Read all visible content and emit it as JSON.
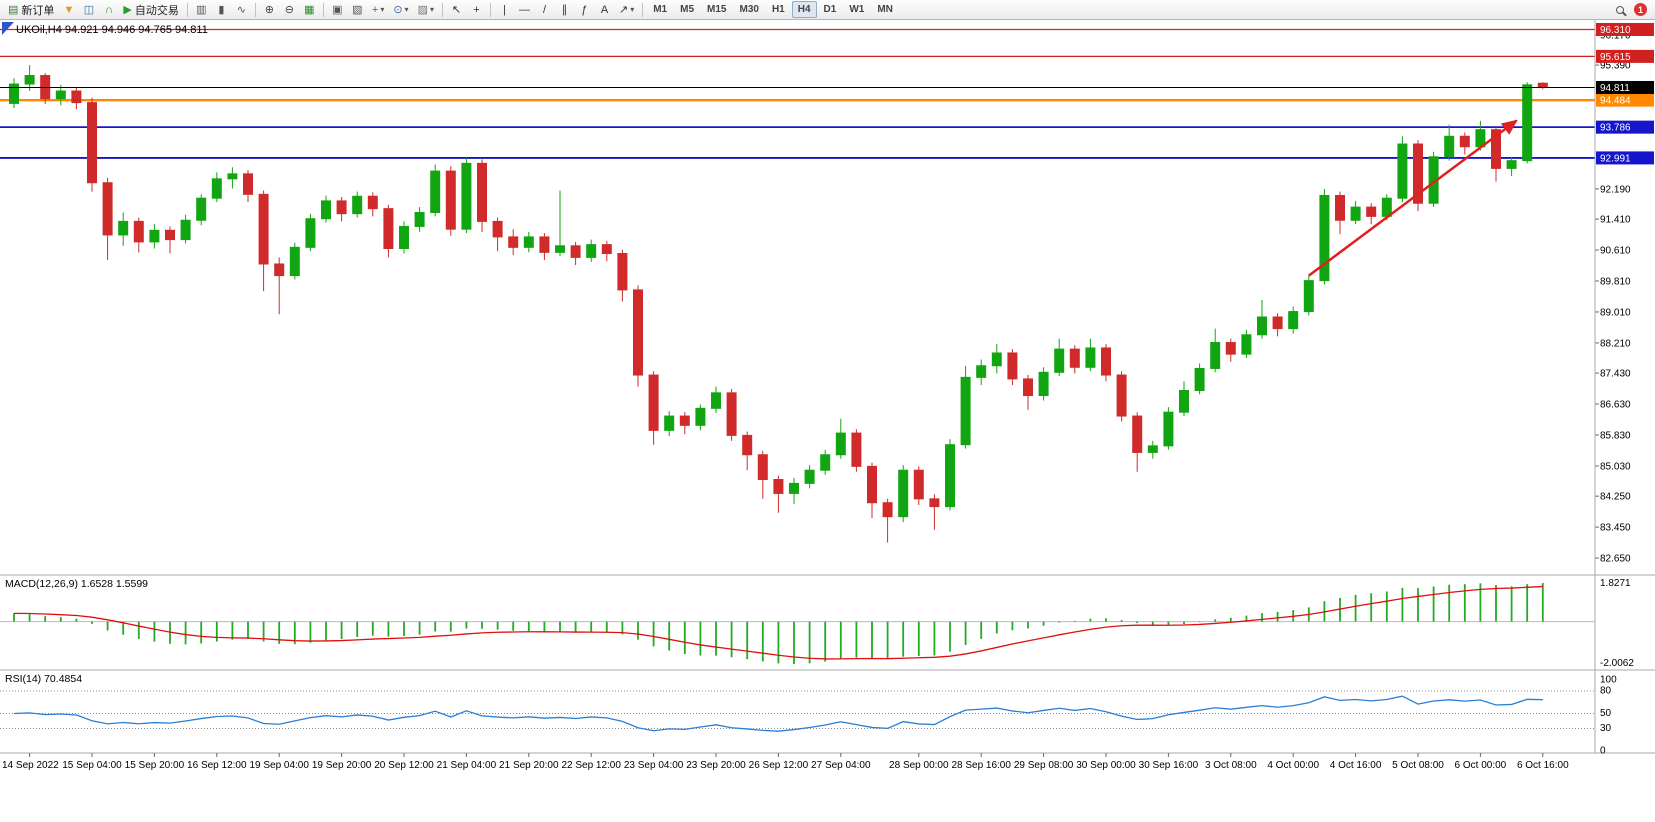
{
  "toolbar": {
    "new_order_label": "新订单",
    "autotrade_label": "自动交易",
    "timeframes": [
      "M1",
      "M5",
      "M15",
      "M30",
      "H1",
      "H4",
      "D1",
      "W1",
      "MN"
    ],
    "active_timeframe": "H4",
    "notification_count": "1",
    "items": [
      {
        "type": "btn",
        "name": "new-order-button",
        "glyph": "▤",
        "glyph_color": "#3a7a3a",
        "label": "新订单"
      },
      {
        "type": "btn",
        "name": "funnel-icon",
        "glyph": "▼",
        "glyph_color": "#d49a2a"
      },
      {
        "type": "btn",
        "name": "chart-window-icon",
        "glyph": "◫",
        "glyph_color": "#3a6ea5"
      },
      {
        "type": "btn",
        "name": "headset-icon",
        "glyph": "∩",
        "glyph_color": "#2a8a2a"
      },
      {
        "type": "btn",
        "name": "autotrade-button",
        "glyph": "▶",
        "glyph_color": "#2a9a2a",
        "label": "自动交易"
      },
      {
        "type": "sep"
      },
      {
        "type": "btn",
        "name": "bar-chart-icon",
        "glyph": "▥",
        "glyph_color": "#555555"
      },
      {
        "type": "btn",
        "name": "candlestick-icon",
        "glyph": "▮",
        "glyph_color": "#555555"
      },
      {
        "type": "btn",
        "name": "line-chart-icon",
        "glyph": "∿",
        "glyph_color": "#555555"
      },
      {
        "type": "sep"
      },
      {
        "type": "btn",
        "name": "zoom-in-icon",
        "glyph": "⊕",
        "glyph_color": "#444444"
      },
      {
        "type": "btn",
        "name": "zoom-out-icon",
        "glyph": "⊖",
        "glyph_color": "#444444"
      },
      {
        "type": "btn",
        "name": "grid-icon",
        "glyph": "▦",
        "glyph_color": "#2a8a2a"
      },
      {
        "type": "sep"
      },
      {
        "type": "btn",
        "name": "tile-windows-icon",
        "glyph": "▣",
        "glyph_color": "#555555"
      },
      {
        "type": "btn",
        "name": "cascade-windows-icon",
        "glyph": "▧",
        "glyph_color": "#555555"
      },
      {
        "type": "btn",
        "name": "indicators-dropdown",
        "glyph": "+",
        "glyph_color": "#2a8a2a",
        "caret": true
      },
      {
        "type": "btn",
        "name": "periods-dropdown",
        "glyph": "⊙",
        "glyph_color": "#3a6ea5",
        "caret": true
      },
      {
        "type": "btn",
        "name": "templates-dropdown",
        "glyph": "▨",
        "glyph_color": "#777777",
        "caret": true
      },
      {
        "type": "sep"
      },
      {
        "type": "btn",
        "name": "cursor-icon",
        "glyph": "↖",
        "glyph_color": "#333333"
      },
      {
        "type": "btn",
        "name": "crosshair-icon",
        "glyph": "+",
        "glyph_color": "#333333"
      },
      {
        "type": "sep"
      },
      {
        "type": "btn",
        "name": "vertical-line-icon",
        "glyph": "|",
        "glyph_color": "#333333"
      },
      {
        "type": "btn",
        "name": "horizontal-line-icon",
        "glyph": "—",
        "glyph_color": "#333333"
      },
      {
        "type": "btn",
        "name": "trendline-icon",
        "glyph": "/",
        "glyph_color": "#333333"
      },
      {
        "type": "btn",
        "name": "channel-icon",
        "glyph": "∥",
        "glyph_color": "#333333"
      },
      {
        "type": "btn",
        "name": "fibonacci-icon",
        "glyph": "ƒ",
        "glyph_color": "#333333"
      },
      {
        "type": "btn",
        "name": "text-icon",
        "glyph": "A",
        "glyph_color": "#333333"
      },
      {
        "type": "btn",
        "name": "arrows-icon",
        "glyph": "↗",
        "glyph_color": "#333333",
        "caret": true
      },
      {
        "type": "sep"
      },
      {
        "type": "tf-group"
      },
      {
        "type": "spacer"
      },
      {
        "type": "mag",
        "name": "search-icon"
      },
      {
        "type": "badge",
        "name": "notification-badge"
      }
    ]
  },
  "chart": {
    "title": "UKOil,H4 94.921 94.946 94.765 94.811",
    "symbol": "UKOil",
    "period": "H4",
    "ohlc_display": {
      "open": "94.921",
      "high": "94.946",
      "low": "94.765",
      "close": "94.811"
    },
    "colors": {
      "background": "#ffffff",
      "bull": "#12a512",
      "bear": "#d02a2a",
      "axis_text": "#000000",
      "panel_border": "#a8a8a8"
    },
    "y_range": [
      82.6,
      96.4
    ],
    "y_axis_labels": [
      96.17,
      95.39,
      92.19,
      91.41,
      90.61,
      89.81,
      89.01,
      88.21,
      87.43,
      86.63,
      85.83,
      85.03,
      84.25,
      83.45,
      82.65
    ],
    "levels": [
      {
        "price": 96.31,
        "label": "96.310",
        "color": "#d02020",
        "w": 1.2
      },
      {
        "price": 95.615,
        "label": "95.615",
        "color": "#d02020",
        "w": 1.2
      },
      {
        "price": 94.484,
        "label": "94.484",
        "color": "#ff8800",
        "w": 2.4
      },
      {
        "price": 93.786,
        "label": "93.786",
        "color": "#1515cc",
        "w": 1.8
      },
      {
        "price": 92.991,
        "label": "92.991",
        "color": "#1515cc",
        "w": 1.8
      }
    ],
    "current_price": {
      "value": 94.811,
      "label": "94.811",
      "color": "#000000"
    },
    "trend_arrow": {
      "from_bar": 83,
      "from_price": 89.95,
      "to_bar": 96.3,
      "to_price": 93.95,
      "color": "#e02020"
    }
  },
  "chart_data": {
    "type": "candlestick",
    "symbol": "UKOil",
    "timeframe": "H4",
    "title": "UKOil,H4 94.921 94.946 94.765 94.811",
    "ylim": [
      82.6,
      96.4
    ],
    "x_labels": [
      {
        "bar": 1,
        "label": "14 Sep 2022"
      },
      {
        "bar": 5,
        "label": "15 Sep 04:00"
      },
      {
        "bar": 9,
        "label": "15 Sep 20:00"
      },
      {
        "bar": 13,
        "label": "16 Sep 12:00"
      },
      {
        "bar": 17,
        "label": "19 Sep 04:00"
      },
      {
        "bar": 21,
        "label": "19 Sep 20:00"
      },
      {
        "bar": 25,
        "label": "20 Sep 12:00"
      },
      {
        "bar": 29,
        "label": "21 Sep 04:00"
      },
      {
        "bar": 33,
        "label": "21 Sep 20:00"
      },
      {
        "bar": 37,
        "label": "22 Sep 12:00"
      },
      {
        "bar": 41,
        "label": "23 Sep 04:00"
      },
      {
        "bar": 45,
        "label": "23 Sep 20:00"
      },
      {
        "bar": 49,
        "label": "26 Sep 12:00"
      },
      {
        "bar": 53,
        "label": "27 Sep 04:00"
      },
      {
        "bar": 58,
        "label": "28 Sep 00:00"
      },
      {
        "bar": 62,
        "label": "28 Sep 16:00"
      },
      {
        "bar": 66,
        "label": "29 Sep 08:00"
      },
      {
        "bar": 70,
        "label": "30 Sep 00:00"
      },
      {
        "bar": 74,
        "label": "30 Sep 16:00"
      },
      {
        "bar": 78,
        "label": "3 Oct 08:00"
      },
      {
        "bar": 82,
        "label": "4 Oct 00:00"
      },
      {
        "bar": 86,
        "label": "4 Oct 16:00"
      },
      {
        "bar": 90,
        "label": "5 Oct 08:00"
      },
      {
        "bar": 94,
        "label": "6 Oct 00:00"
      },
      {
        "bar": 98,
        "label": "6 Oct 16:00"
      }
    ],
    "ohlc": [
      [
        94.4,
        95.05,
        94.28,
        94.9
      ],
      [
        94.9,
        95.39,
        94.72,
        95.12
      ],
      [
        95.12,
        95.18,
        94.38,
        94.52
      ],
      [
        94.52,
        94.88,
        94.35,
        94.72
      ],
      [
        94.72,
        94.8,
        94.25,
        94.42
      ],
      [
        94.42,
        94.55,
        92.12,
        92.35
      ],
      [
        92.35,
        92.48,
        90.35,
        91.0
      ],
      [
        91.0,
        91.58,
        90.72,
        91.35
      ],
      [
        91.35,
        91.45,
        90.55,
        90.82
      ],
      [
        90.82,
        91.28,
        90.65,
        91.12
      ],
      [
        91.12,
        91.22,
        90.52,
        90.88
      ],
      [
        90.88,
        91.52,
        90.78,
        91.38
      ],
      [
        91.38,
        92.05,
        91.25,
        91.95
      ],
      [
        91.95,
        92.62,
        91.85,
        92.45
      ],
      [
        92.45,
        92.75,
        92.2,
        92.58
      ],
      [
        92.58,
        92.68,
        91.85,
        92.05
      ],
      [
        92.05,
        92.15,
        89.55,
        90.25
      ],
      [
        90.25,
        90.42,
        88.95,
        89.95
      ],
      [
        89.95,
        90.8,
        89.85,
        90.68
      ],
      [
        90.68,
        91.55,
        90.58,
        91.42
      ],
      [
        91.42,
        92.02,
        91.32,
        91.88
      ],
      [
        91.88,
        91.98,
        91.35,
        91.55
      ],
      [
        91.55,
        92.12,
        91.45,
        92.0
      ],
      [
        92.0,
        92.1,
        91.48,
        91.68
      ],
      [
        91.68,
        91.78,
        90.42,
        90.65
      ],
      [
        90.65,
        91.35,
        90.52,
        91.22
      ],
      [
        91.22,
        91.72,
        91.08,
        91.58
      ],
      [
        91.58,
        92.82,
        91.48,
        92.65
      ],
      [
        92.65,
        92.78,
        90.98,
        91.15
      ],
      [
        91.15,
        93.0,
        91.05,
        92.85
      ],
      [
        92.85,
        92.95,
        91.08,
        91.35
      ],
      [
        91.35,
        91.45,
        90.58,
        90.95
      ],
      [
        90.95,
        91.15,
        90.48,
        90.68
      ],
      [
        90.68,
        91.08,
        90.55,
        90.95
      ],
      [
        90.95,
        91.05,
        90.35,
        90.55
      ],
      [
        90.55,
        92.15,
        90.45,
        90.72
      ],
      [
        90.72,
        90.82,
        90.22,
        90.42
      ],
      [
        90.42,
        90.88,
        90.3,
        90.75
      ],
      [
        90.75,
        90.85,
        90.32,
        90.52
      ],
      [
        90.52,
        90.62,
        89.28,
        89.58
      ],
      [
        89.58,
        89.7,
        87.08,
        87.38
      ],
      [
        87.38,
        87.48,
        85.58,
        85.95
      ],
      [
        85.95,
        86.45,
        85.8,
        86.32
      ],
      [
        86.32,
        86.42,
        85.85,
        86.08
      ],
      [
        86.08,
        86.62,
        85.95,
        86.52
      ],
      [
        86.52,
        87.08,
        86.4,
        86.92
      ],
      [
        86.92,
        87.02,
        85.68,
        85.82
      ],
      [
        85.82,
        85.92,
        84.92,
        85.32
      ],
      [
        85.32,
        85.42,
        84.18,
        84.68
      ],
      [
        84.68,
        84.78,
        83.82,
        84.32
      ],
      [
        84.32,
        84.72,
        84.05,
        84.58
      ],
      [
        84.58,
        85.05,
        84.45,
        84.92
      ],
      [
        84.92,
        85.45,
        84.8,
        85.32
      ],
      [
        85.32,
        86.25,
        85.22,
        85.88
      ],
      [
        85.88,
        85.98,
        84.88,
        85.02
      ],
      [
        85.02,
        85.12,
        83.68,
        84.08
      ],
      [
        84.08,
        84.18,
        83.05,
        83.72
      ],
      [
        83.72,
        85.05,
        83.58,
        84.92
      ],
      [
        84.92,
        85.02,
        84.02,
        84.18
      ],
      [
        84.18,
        84.3,
        83.38,
        83.98
      ],
      [
        83.98,
        85.72,
        83.88,
        85.58
      ],
      [
        85.58,
        87.62,
        85.48,
        87.32
      ],
      [
        87.32,
        87.78,
        87.12,
        87.62
      ],
      [
        87.62,
        88.18,
        87.42,
        87.95
      ],
      [
        87.95,
        88.05,
        87.12,
        87.28
      ],
      [
        87.28,
        87.38,
        86.48,
        86.85
      ],
      [
        86.85,
        87.58,
        86.72,
        87.45
      ],
      [
        87.45,
        88.32,
        87.35,
        88.05
      ],
      [
        88.05,
        88.15,
        87.42,
        87.58
      ],
      [
        87.58,
        88.32,
        87.48,
        88.08
      ],
      [
        88.08,
        88.18,
        87.22,
        87.38
      ],
      [
        87.38,
        87.48,
        86.18,
        86.32
      ],
      [
        86.32,
        86.42,
        84.88,
        85.38
      ],
      [
        85.38,
        85.68,
        85.22,
        85.55
      ],
      [
        85.55,
        86.55,
        85.45,
        86.42
      ],
      [
        86.42,
        87.22,
        86.32,
        86.98
      ],
      [
        86.98,
        87.68,
        86.88,
        87.55
      ],
      [
        87.55,
        88.58,
        87.45,
        88.22
      ],
      [
        88.22,
        88.32,
        87.72,
        87.92
      ],
      [
        87.92,
        88.55,
        87.82,
        88.42
      ],
      [
        88.42,
        89.32,
        88.32,
        88.88
      ],
      [
        88.88,
        88.98,
        88.38,
        88.58
      ],
      [
        88.58,
        89.15,
        88.45,
        89.02
      ],
      [
        89.02,
        89.95,
        88.92,
        89.82
      ],
      [
        89.82,
        92.19,
        89.72,
        92.02
      ],
      [
        92.02,
        92.12,
        91.02,
        91.38
      ],
      [
        91.38,
        91.88,
        91.28,
        91.72
      ],
      [
        91.72,
        91.82,
        91.28,
        91.48
      ],
      [
        91.48,
        92.05,
        91.38,
        91.95
      ],
      [
        91.95,
        93.55,
        91.85,
        93.35
      ],
      [
        93.35,
        93.45,
        91.62,
        91.82
      ],
      [
        91.82,
        93.15,
        91.72,
        93.02
      ],
      [
        93.02,
        93.85,
        92.92,
        93.55
      ],
      [
        93.55,
        93.65,
        93.08,
        93.28
      ],
      [
        93.28,
        93.95,
        93.18,
        93.72
      ],
      [
        93.72,
        93.82,
        92.38,
        92.72
      ],
      [
        92.72,
        93.02,
        92.52,
        92.92
      ],
      [
        92.92,
        94.95,
        92.85,
        94.88
      ],
      [
        94.921,
        94.946,
        94.765,
        94.811
      ]
    ]
  },
  "macd": {
    "label": "MACD(12,26,9) 1.6528 1.5599",
    "name": "MACD",
    "params": "12,26,9",
    "value_main": "1.6528",
    "value_signal": "1.5599",
    "axis_max": "1.8271",
    "axis_min": "-2.0062",
    "hist_color": "#22aa22",
    "signal_color": "#e01010"
  },
  "rsi": {
    "label": "RSI(14) 70.4854",
    "name": "RSI",
    "period": "14",
    "value": "70.4854",
    "levels": [
      80,
      50,
      30
    ],
    "axis_labels": [
      100,
      80,
      50,
      30,
      0
    ],
    "line_color": "#2a7fd4"
  }
}
